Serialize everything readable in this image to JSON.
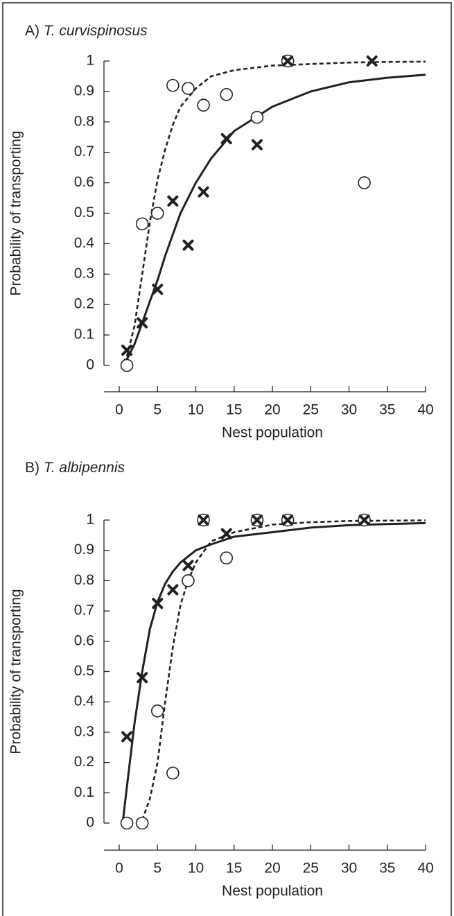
{
  "chart_data": [
    {
      "type": "scatter",
      "panel": "A)",
      "title": "T. curvispinosus",
      "xlabel": "Nest population",
      "ylabel": "Probability of transporting",
      "xlim": [
        0,
        40
      ],
      "ylim": [
        0,
        1
      ],
      "xticks": [
        0,
        5,
        10,
        15,
        20,
        25,
        30,
        35,
        40
      ],
      "yticks": [
        0,
        0.1,
        0.2,
        0.3,
        0.4,
        0.5,
        0.6,
        0.7,
        0.8,
        0.9,
        1
      ],
      "series": [
        {
          "kind": "line",
          "dash": "dashed",
          "color": "#231f20",
          "x": [
            0.5,
            1,
            2,
            3,
            4,
            5,
            6,
            7,
            8,
            10,
            12,
            15,
            20,
            25,
            30,
            35,
            40
          ],
          "values": [
            0.01,
            0.03,
            0.13,
            0.3,
            0.47,
            0.61,
            0.71,
            0.79,
            0.85,
            0.91,
            0.95,
            0.97,
            0.985,
            0.99,
            0.995,
            0.997,
            0.998
          ]
        },
        {
          "kind": "line",
          "dash": "solid",
          "color": "#231f20",
          "x": [
            0.5,
            1,
            2,
            3,
            4,
            5,
            6,
            7,
            8,
            10,
            12,
            15,
            20,
            25,
            30,
            35,
            40
          ],
          "values": [
            0.005,
            0.02,
            0.07,
            0.14,
            0.21,
            0.28,
            0.36,
            0.43,
            0.5,
            0.6,
            0.68,
            0.77,
            0.85,
            0.9,
            0.93,
            0.945,
            0.955
          ]
        },
        {
          "kind": "circle",
          "color": "#231f20",
          "x": [
            1,
            3,
            5,
            7,
            9,
            11,
            14,
            18,
            22,
            32
          ],
          "values": [
            0,
            0.465,
            0.5,
            0.92,
            0.91,
            0.855,
            0.89,
            0.815,
            1,
            0.6
          ]
        },
        {
          "kind": "cross",
          "color": "#231f20",
          "x": [
            1,
            3,
            5,
            7,
            9,
            11,
            14,
            18,
            22,
            33
          ],
          "values": [
            0.05,
            0.14,
            0.25,
            0.54,
            0.395,
            0.57,
            0.745,
            0.725,
            1,
            1
          ]
        }
      ]
    },
    {
      "type": "scatter",
      "panel": "B)",
      "title": "T. albipennis",
      "xlabel": "Nest population",
      "ylabel": "Probability of transporting",
      "xlim": [
        0,
        40
      ],
      "ylim": [
        0,
        1
      ],
      "xticks": [
        0,
        5,
        10,
        15,
        20,
        25,
        30,
        35,
        40
      ],
      "yticks": [
        0,
        0.1,
        0.2,
        0.3,
        0.4,
        0.5,
        0.6,
        0.7,
        0.8,
        0.9,
        1
      ],
      "series": [
        {
          "kind": "line",
          "dash": "dashed",
          "color": "#231f20",
          "x": [
            3,
            4,
            5,
            6,
            7,
            8,
            9,
            10,
            12,
            15,
            20,
            25,
            30,
            40
          ],
          "values": [
            0.01,
            0.08,
            0.2,
            0.4,
            0.58,
            0.72,
            0.8,
            0.86,
            0.93,
            0.96,
            0.985,
            0.993,
            0.997,
            0.999
          ]
        },
        {
          "kind": "line",
          "dash": "solid",
          "color": "#231f20",
          "x": [
            0.5,
            1,
            2,
            3,
            4,
            5,
            6,
            7,
            8,
            10,
            12,
            15,
            20,
            25,
            30,
            35,
            40
          ],
          "values": [
            0.01,
            0.12,
            0.33,
            0.5,
            0.64,
            0.73,
            0.79,
            0.83,
            0.86,
            0.9,
            0.92,
            0.945,
            0.96,
            0.975,
            0.983,
            0.987,
            0.99
          ]
        },
        {
          "kind": "circle",
          "color": "#231f20",
          "x": [
            1,
            3,
            5,
            7,
            9,
            11,
            14,
            18,
            22,
            32
          ],
          "values": [
            0,
            0,
            0.37,
            0.165,
            0.8,
            1,
            0.875,
            1,
            1,
            1
          ]
        },
        {
          "kind": "cross",
          "color": "#231f20",
          "x": [
            1,
            3,
            5,
            7,
            9,
            11,
            14,
            18,
            22,
            32
          ],
          "values": [
            0.285,
            0.48,
            0.725,
            0.77,
            0.85,
            1,
            0.955,
            1,
            1,
            1
          ]
        }
      ]
    }
  ]
}
